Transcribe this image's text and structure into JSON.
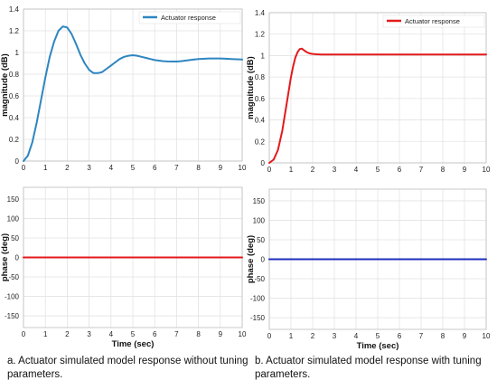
{
  "chart_data": [
    {
      "id": "a-magnitude",
      "type": "line",
      "xlim": [
        0,
        10
      ],
      "ylim": [
        0,
        1.4
      ],
      "xticks": [
        0,
        1,
        2,
        3,
        4,
        5,
        6,
        7,
        8,
        9,
        10
      ],
      "yticks": [
        0,
        0.2,
        0.4,
        0.6,
        0.8,
        1,
        1.2,
        1.4
      ],
      "ytick_labels": [
        "0",
        "0.2",
        "0.4",
        "0.6",
        "0.8",
        "1",
        "1.2",
        "1.4"
      ],
      "xlabel": "",
      "ylabel": "magnitude (dB)",
      "grid": true,
      "legend": "top-right",
      "series": [
        {
          "name": "Actuator response",
          "color": "#2e86c1",
          "x": [
            0,
            0.2,
            0.4,
            0.6,
            0.8,
            1,
            1.2,
            1.4,
            1.6,
            1.8,
            2,
            2.2,
            2.4,
            2.6,
            2.8,
            3,
            3.2,
            3.4,
            3.6,
            3.8,
            4,
            4.2,
            4.4,
            4.6,
            4.8,
            5,
            5.2,
            5.4,
            5.6,
            5.8,
            6,
            6.2,
            6.4,
            6.6,
            6.8,
            7,
            7.2,
            7.4,
            7.6,
            7.8,
            8,
            8.5,
            9,
            9.5,
            10
          ],
          "y": [
            0,
            0.05,
            0.17,
            0.35,
            0.56,
            0.77,
            0.96,
            1.1,
            1.2,
            1.24,
            1.23,
            1.17,
            1.08,
            0.98,
            0.9,
            0.84,
            0.81,
            0.81,
            0.82,
            0.85,
            0.88,
            0.91,
            0.94,
            0.96,
            0.97,
            0.975,
            0.97,
            0.96,
            0.95,
            0.94,
            0.93,
            0.925,
            0.92,
            0.918,
            0.917,
            0.917,
            0.92,
            0.925,
            0.93,
            0.935,
            0.94,
            0.945,
            0.945,
            0.94,
            0.935
          ]
        }
      ]
    },
    {
      "id": "a-phase",
      "type": "line",
      "xlim": [
        0,
        10
      ],
      "ylim": [
        -180,
        180
      ],
      "xticks": [
        0,
        1,
        2,
        3,
        4,
        5,
        6,
        7,
        8,
        9,
        10
      ],
      "yticks": [
        -150,
        -100,
        -50,
        0,
        50,
        100,
        150
      ],
      "ytick_labels": [
        "-150",
        "-100",
        "-50",
        "0",
        "50",
        "100",
        "150"
      ],
      "xlabel": "Time (sec)",
      "ylabel": "phase (deg)",
      "grid": true,
      "series": [
        {
          "color": "#e31a1c",
          "x": [
            0,
            10
          ],
          "y": [
            0,
            0
          ]
        }
      ]
    },
    {
      "id": "b-magnitude",
      "type": "line",
      "xlim": [
        0,
        10
      ],
      "ylim": [
        0,
        1.4
      ],
      "xticks": [
        0,
        1,
        2,
        3,
        4,
        5,
        6,
        7,
        8,
        9,
        10
      ],
      "yticks": [
        0,
        0.2,
        0.4,
        0.6,
        0.8,
        1,
        1.2,
        1.4
      ],
      "ytick_labels": [
        "0",
        "0.2",
        "0.4",
        "0.6",
        "0.8",
        "1",
        "1.2",
        "1.4"
      ],
      "xlabel": "",
      "ylabel": "magnitude (dB)",
      "grid": true,
      "legend": "top-right",
      "series": [
        {
          "name": "Actuator response",
          "color": "#e31a1c",
          "x": [
            0,
            0.2,
            0.4,
            0.6,
            0.8,
            1,
            1.1,
            1.2,
            1.3,
            1.4,
            1.5,
            1.6,
            1.7,
            1.8,
            1.9,
            2,
            2.2,
            2.4,
            2.6,
            3,
            4,
            5,
            6,
            7,
            8,
            9,
            10
          ],
          "y": [
            0,
            0.03,
            0.12,
            0.3,
            0.55,
            0.8,
            0.9,
            0.98,
            1.03,
            1.06,
            1.065,
            1.05,
            1.035,
            1.025,
            1.018,
            1.015,
            1.012,
            1.01,
            1.01,
            1.01,
            1.01,
            1.01,
            1.01,
            1.01,
            1.01,
            1.01,
            1.01
          ]
        }
      ]
    },
    {
      "id": "b-phase",
      "type": "line",
      "xlim": [
        0,
        10
      ],
      "ylim": [
        -180,
        180
      ],
      "xticks": [
        0,
        1,
        2,
        3,
        4,
        5,
        6,
        7,
        8,
        9,
        10
      ],
      "yticks": [
        -150,
        -100,
        -50,
        0,
        50,
        100,
        150
      ],
      "ytick_labels": [
        "-150",
        "-100",
        "-50",
        "0",
        "50",
        "100",
        "150"
      ],
      "xlabel": "Time (sec)",
      "ylabel": "phase (deg)",
      "grid": true,
      "series": [
        {
          "color": "#1f2fbf",
          "x": [
            0,
            10
          ],
          "y": [
            0,
            0
          ]
        }
      ]
    }
  ],
  "captions": {
    "a": "a.   Actuator simulated model response without tuning parameters.",
    "b": "b.   Actuator simulated model response with tuning parameters."
  }
}
